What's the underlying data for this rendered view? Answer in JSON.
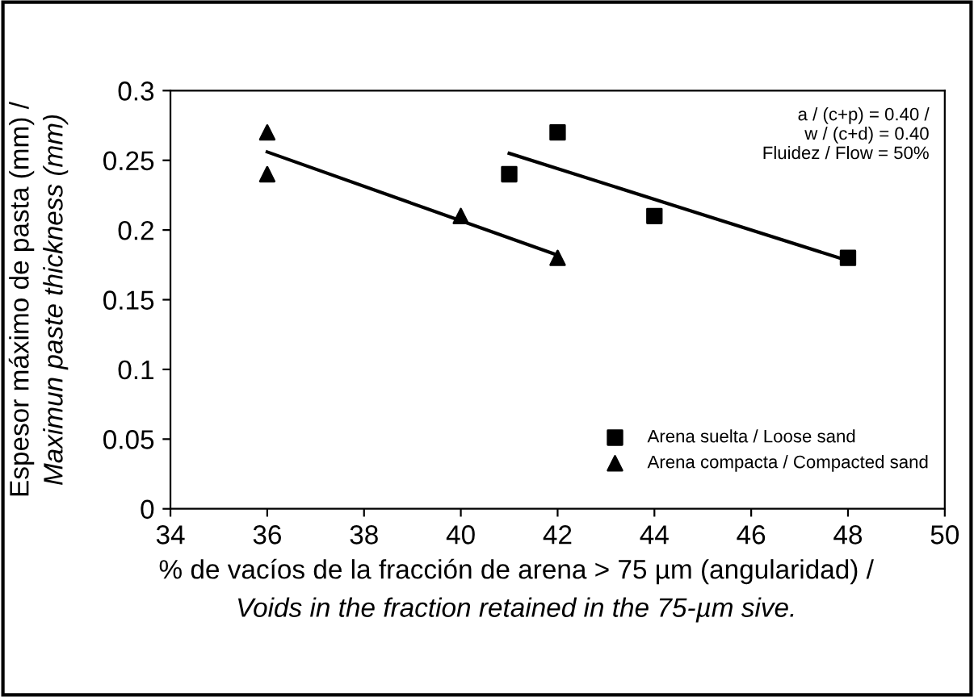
{
  "chart_data": {
    "type": "scatter",
    "xlabel": "% de vacíos de la fracción de arena > 75 µm (angularidad) /\nVoids in the fraction retained in the 75-µm sive.",
    "ylabel": "Espesor máximo de pasta (mm) /\nMaximun paste thickness (mm)",
    "xlim": [
      34,
      50
    ],
    "xticks": [
      34,
      36,
      38,
      40,
      42,
      44,
      46,
      48,
      50
    ],
    "ylim": [
      0,
      0.3
    ],
    "yticks": [
      0,
      0.05,
      0.1,
      0.15,
      0.2,
      0.25,
      0.3
    ],
    "grid": false,
    "legend": "bottom right",
    "annotations": [
      "a / (c+p) = 0.40 /\nw / (c+d) = 0.40\nFluidez / Flow = 50%"
    ],
    "series": [
      {
        "name": "Arena suelta / Loose sand",
        "color": "#000000",
        "marker": "square",
        "x": [
          41,
          42,
          44,
          48
        ],
        "values": [
          0.24,
          0.27,
          0.21,
          0.18
        ]
      },
      {
        "name": "Arena compacta / Compacted sand",
        "color": "#000000",
        "marker": "triangle",
        "x": [
          36,
          36,
          40,
          42
        ],
        "values": [
          0.27,
          0.24,
          0.21,
          0.18
        ]
      },
      {
        "type": "line",
        "color": "#000000",
        "marker": "none",
        "x": [
          41,
          48
        ],
        "values": [
          0.255,
          0.178
        ]
      },
      {
        "type": "line",
        "color": "#000000",
        "marker": "none",
        "x": [
          36,
          42
        ],
        "values": [
          0.256,
          0.182
        ]
      }
    ]
  }
}
